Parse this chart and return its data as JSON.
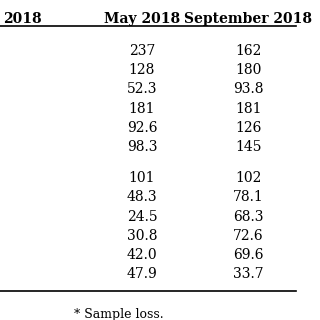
{
  "header": [
    "2018",
    "May 2018",
    "September 2018"
  ],
  "group1": [
    [
      "",
      "237",
      "162"
    ],
    [
      "",
      "128",
      "180"
    ],
    [
      "",
      "52.3",
      "93.8"
    ],
    [
      "",
      "181",
      "181"
    ],
    [
      "",
      "92.6",
      "126"
    ],
    [
      "",
      "98.3",
      "145"
    ]
  ],
  "group2": [
    [
      "",
      "101",
      "102"
    ],
    [
      "",
      "48.3",
      "78.1"
    ],
    [
      "",
      "24.5",
      "68.3"
    ],
    [
      "",
      "30.8",
      "72.6"
    ],
    [
      "",
      "42.0",
      "69.6"
    ],
    [
      "",
      "47.9",
      "33.7"
    ]
  ],
  "footnote": "* Sample loss.",
  "background_color": "#ffffff",
  "font_size": 10,
  "header_font_size": 10
}
